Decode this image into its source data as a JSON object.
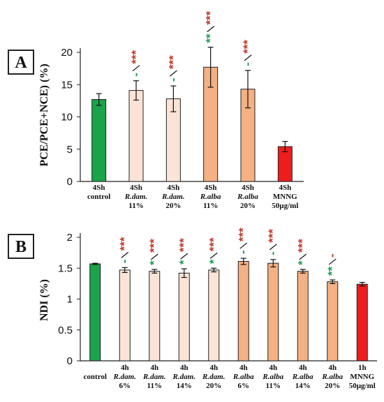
{
  "colors": {
    "green": "#1aa34a",
    "red_bar": "#ee1c1c",
    "light_peach": "#fbe4d6",
    "dark_peach": "#f4b183",
    "sig_red": "#c0392b",
    "sig_green": "#1f9d55",
    "outline": "#222222"
  },
  "chart_data": [
    {
      "type": "bar",
      "panel_label": "A",
      "ylabel": "PCE/PCE+NCE) (%)",
      "ylim": [
        0,
        20
      ],
      "yticks": [
        "0",
        "5",
        "10",
        "15",
        "20"
      ],
      "grid": false,
      "categories": [
        {
          "line1": "4Sh",
          "line2": "control",
          "line3": ""
        },
        {
          "line1": "4Sh",
          "line2": "R.dam.",
          "line3": "11%"
        },
        {
          "line1": "4Sh",
          "line2": "R.dam.",
          "line3": "20%"
        },
        {
          "line1": "4Sh",
          "line2": "R.alba",
          "line3": "11%"
        },
        {
          "line1": "4Sh",
          "line2": "R.alba",
          "line3": "20%"
        },
        {
          "line1": "4Sh",
          "line2": "MNNG",
          "line3": "50µg/ml"
        }
      ],
      "values": [
        12.7,
        14.1,
        12.8,
        17.7,
        14.3,
        5.4
      ],
      "errors": [
        0.9,
        1.5,
        2.0,
        3.1,
        2.9,
        0.8
      ],
      "bar_colors": [
        "green",
        "light_peach",
        "light_peach",
        "dark_peach",
        "dark_peach",
        "red_bar"
      ],
      "significance": [
        null,
        {
          "red": "***",
          "green": "-"
        },
        {
          "red": "***",
          "green": "-"
        },
        {
          "red": "***",
          "green": "**"
        },
        {
          "red": "***",
          "green": "-"
        },
        null
      ]
    },
    {
      "type": "bar",
      "panel_label": "B",
      "ylabel": "NDI (%)",
      "ylim": [
        0,
        2
      ],
      "yticks": [
        "0",
        "0.5",
        "1",
        "1.5",
        "2"
      ],
      "grid": false,
      "categories": [
        {
          "line1": "",
          "line2": "control",
          "line3": ""
        },
        {
          "line1": "4h",
          "line2": "R.dam.",
          "line3": "6%"
        },
        {
          "line1": "4h",
          "line2": "R.dam.",
          "line3": "11%"
        },
        {
          "line1": "4h",
          "line2": "R.dam.",
          "line3": "14%"
        },
        {
          "line1": "4h",
          "line2": "R.dam.",
          "line3": "20%"
        },
        {
          "line1": "4h",
          "line2": "R.alba",
          "line3": "6%"
        },
        {
          "line1": "4h",
          "line2": "R.alba",
          "line3": "11%"
        },
        {
          "line1": "4h",
          "line2": "R.alba",
          "line3": "14%"
        },
        {
          "line1": "4h",
          "line2": "R.alba",
          "line3": "20%"
        },
        {
          "line1": "1h",
          "line2": "MNNG",
          "line3": "50µg/ml"
        }
      ],
      "values": [
        1.57,
        1.47,
        1.45,
        1.42,
        1.47,
        1.61,
        1.58,
        1.45,
        1.28,
        1.24
      ],
      "errors": [
        0.01,
        0.04,
        0.03,
        0.07,
        0.03,
        0.05,
        0.06,
        0.03,
        0.03,
        0.03
      ],
      "bar_colors": [
        "green",
        "light_peach",
        "light_peach",
        "light_peach",
        "light_peach",
        "dark_peach",
        "dark_peach",
        "dark_peach",
        "dark_peach",
        "red_bar"
      ],
      "significance": [
        null,
        {
          "red": "***",
          "green": "-"
        },
        {
          "red": "***",
          "green": "*"
        },
        {
          "red": "***",
          "green": "*"
        },
        {
          "red": "***",
          "green": "*"
        },
        {
          "red": "***",
          "green": "-"
        },
        {
          "red": "***",
          "green": "-"
        },
        {
          "red": "***",
          "green": "*"
        },
        {
          "red": "-",
          "green": "**"
        },
        null
      ]
    }
  ]
}
